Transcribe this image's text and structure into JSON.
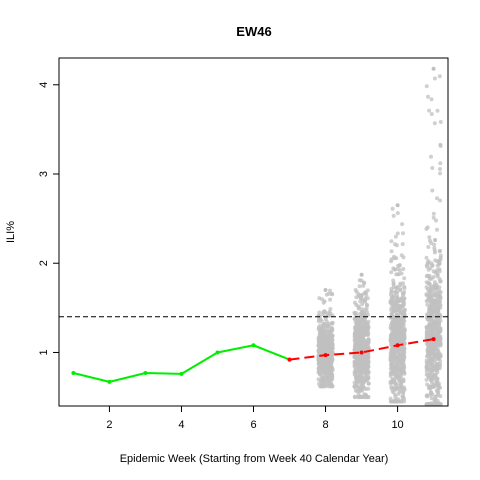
{
  "chart_data": {
    "type": "line",
    "title": "EW46",
    "xlabel": "Epidemic Week (Starting from Week 40 Calendar Year)",
    "ylabel": "ILI%",
    "xlim": [
      0.6,
      11.4
    ],
    "ylim": [
      0.4,
      4.3
    ],
    "xticks": [
      2,
      4,
      6,
      8,
      10
    ],
    "yticks": [
      1,
      2,
      3,
      4
    ],
    "grid": false,
    "threshold": {
      "value": 1.4,
      "style": "dashed",
      "color": "#000000"
    },
    "series": [
      {
        "role": "observed",
        "color": "#00ee00",
        "x": [
          1,
          2,
          3,
          4,
          5,
          6,
          7
        ],
        "y": [
          0.77,
          0.67,
          0.77,
          0.76,
          1.0,
          1.08,
          0.92
        ]
      },
      {
        "role": "forecast-median",
        "color": "#ff0000",
        "style": "dashed",
        "x": [
          7,
          8,
          9,
          10,
          11
        ],
        "y": [
          0.92,
          0.97,
          1.0,
          1.08,
          1.15
        ]
      }
    ],
    "forecast_distribution": {
      "color": "#c0c0c0",
      "weeks": [
        {
          "x": 8,
          "min": 0.62,
          "max": 1.7,
          "q_low": 0.85,
          "q_high": 1.1
        },
        {
          "x": 9,
          "min": 0.5,
          "max": 1.87,
          "q_low": 0.82,
          "q_high": 1.2
        },
        {
          "x": 10,
          "min": 0.45,
          "max": 2.65,
          "q_low": 0.82,
          "q_high": 1.35
        },
        {
          "x": 11,
          "min": 0.42,
          "max": 4.18,
          "q_low": 0.85,
          "q_high": 1.5
        }
      ]
    }
  }
}
